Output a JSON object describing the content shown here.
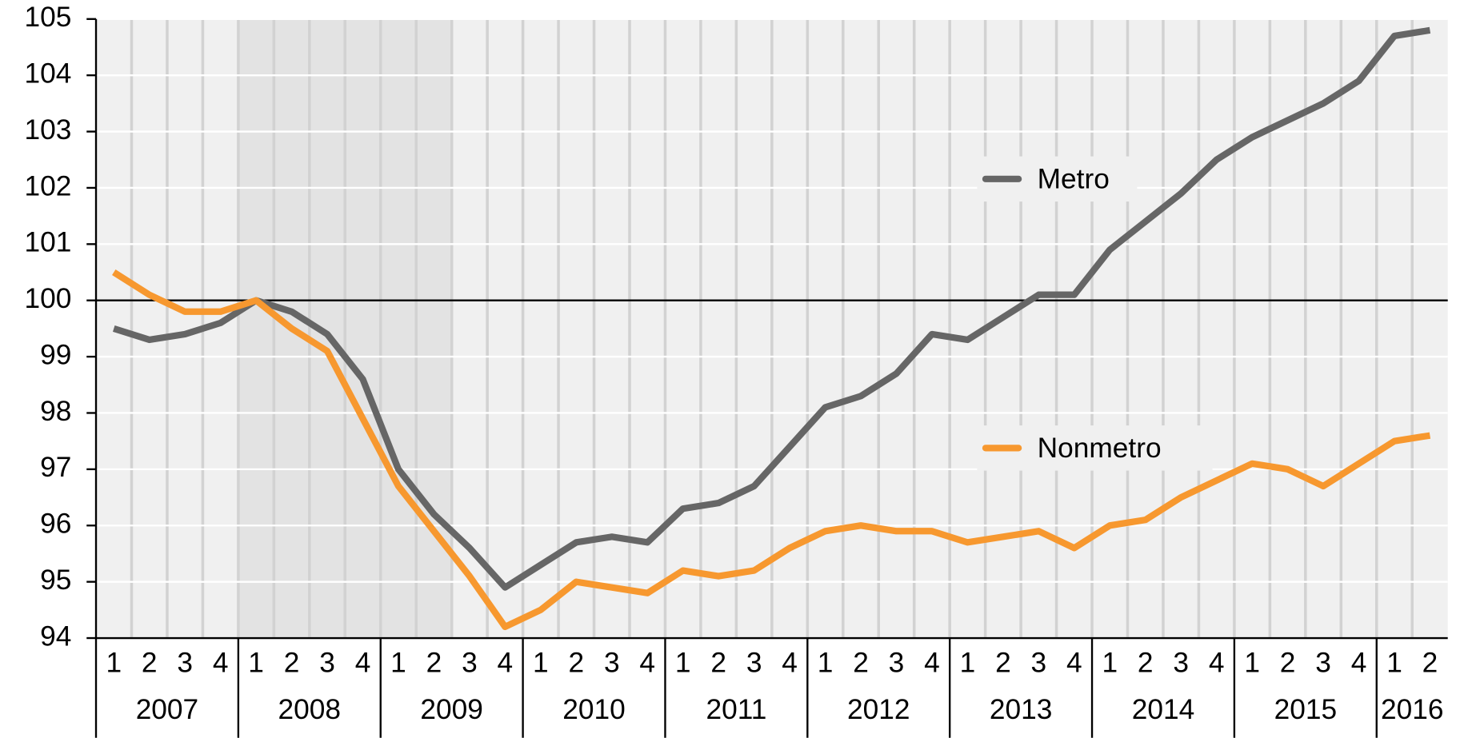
{
  "chart_data": {
    "type": "line",
    "categories": [
      "1",
      "2",
      "3",
      "4",
      "1",
      "2",
      "3",
      "4",
      "1",
      "2",
      "3",
      "4",
      "1",
      "2",
      "3",
      "4",
      "1",
      "2",
      "3",
      "4",
      "1",
      "2",
      "3",
      "4",
      "1",
      "2",
      "3",
      "4",
      "1",
      "2",
      "3",
      "4",
      "1",
      "2",
      "3",
      "4",
      "1",
      "2"
    ],
    "years": [
      "2007",
      "2008",
      "2009",
      "2010",
      "2011",
      "2012",
      "2013",
      "2014",
      "2015",
      "2016"
    ],
    "series": [
      {
        "name": "Metro",
        "color": "#666666",
        "values": [
          99.5,
          99.3,
          99.4,
          99.6,
          100,
          99.8,
          99.4,
          98.6,
          97.0,
          96.2,
          95.6,
          94.9,
          95.3,
          95.7,
          95.8,
          95.7,
          96.3,
          96.4,
          96.7,
          97.4,
          98.1,
          98.3,
          98.7,
          99.4,
          99.3,
          99.7,
          100.1,
          100.1,
          100.9,
          101.4,
          101.9,
          102.5,
          102.9,
          103.2,
          103.5,
          103.9,
          104.7,
          104.8
        ]
      },
      {
        "name": "Nonmetro",
        "color": "#f7982f",
        "values": [
          100.5,
          100.1,
          99.8,
          99.8,
          100,
          99.5,
          99.1,
          97.9,
          96.7,
          95.9,
          95.1,
          94.2,
          94.5,
          95.0,
          94.9,
          94.8,
          95.2,
          95.1,
          95.2,
          95.6,
          95.9,
          96.0,
          95.9,
          95.9,
          95.7,
          95.8,
          95.9,
          95.6,
          96.0,
          96.1,
          96.5,
          96.8,
          97.1,
          97.0,
          96.7,
          97.1,
          97.5,
          97.6
        ]
      }
    ],
    "ylim": [
      94,
      105
    ],
    "yticks": [
      94,
      95,
      96,
      97,
      98,
      99,
      100,
      101,
      102,
      103,
      104,
      105
    ],
    "reference_line": 100,
    "shaded_categories": [
      4,
      9
    ],
    "grid": true
  }
}
